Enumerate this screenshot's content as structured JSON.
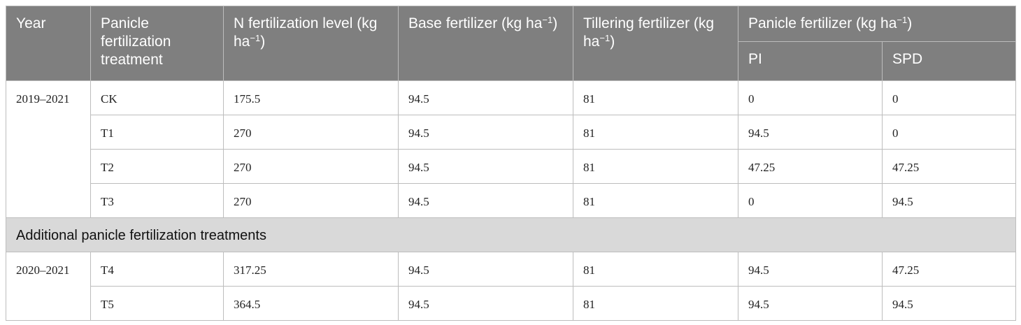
{
  "header": {
    "year": "Year",
    "treatment": "Panicle fertilization treatment",
    "n_level": "N fertilization level (kg ha",
    "base": "Base fertilizer (kg ha",
    "tillering": "Tillering fertilizer (kg ha",
    "panicle": "Panicle fertilizer (kg ha",
    "unit_exp": "−1",
    "unit_close": ")",
    "pi": "PI",
    "spd": "SPD"
  },
  "group1": {
    "year": "2019–2021",
    "rows": [
      {
        "treatment": "CK",
        "n_level": "175.5",
        "base": "94.5",
        "tillering": "81",
        "pi": "0",
        "spd": "0"
      },
      {
        "treatment": "T1",
        "n_level": "270",
        "base": "94.5",
        "tillering": "81",
        "pi": "94.5",
        "spd": "0"
      },
      {
        "treatment": "T2",
        "n_level": "270",
        "base": "94.5",
        "tillering": "81",
        "pi": "47.25",
        "spd": "47.25"
      },
      {
        "treatment": "T3",
        "n_level": "270",
        "base": "94.5",
        "tillering": "81",
        "pi": "0",
        "spd": "94.5"
      }
    ]
  },
  "section_label": "Additional panicle fertilization treatments",
  "group2": {
    "year": "2020–2021",
    "rows": [
      {
        "treatment": "T4",
        "n_level": "317.25",
        "base": "94.5",
        "tillering": "81",
        "pi": "94.5",
        "spd": "47.25"
      },
      {
        "treatment": "T5",
        "n_level": "364.5",
        "base": "94.5",
        "tillering": "81",
        "pi": "94.5",
        "spd": "94.5"
      }
    ]
  }
}
